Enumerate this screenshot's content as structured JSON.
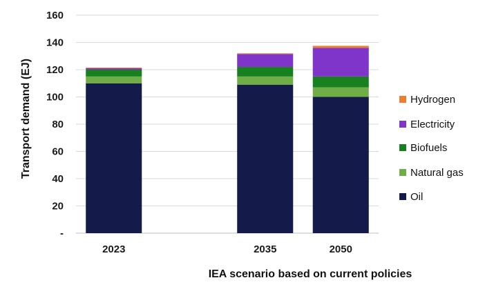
{
  "chart_data": {
    "type": "bar",
    "stacked": true,
    "categories": [
      "2023",
      "",
      "2035",
      "2050"
    ],
    "xlabel": "IEA scenario based on current policies",
    "ylabel": "Transport demand (EJ)",
    "ylim": [
      0,
      160
    ],
    "yticks": [
      "-",
      "20",
      "40",
      "60",
      "80",
      "100",
      "120",
      "140",
      "160"
    ],
    "ytick_values": [
      0,
      20,
      40,
      60,
      80,
      100,
      120,
      140,
      160
    ],
    "grid": true,
    "legend_position": "right",
    "series": [
      {
        "name": "Oil",
        "color": "#141a4a",
        "values": [
          110,
          0,
          109,
          100
        ]
      },
      {
        "name": "Natural gas",
        "color": "#70ad47",
        "values": [
          5,
          0,
          6,
          7
        ]
      },
      {
        "name": "Biofuels",
        "color": "#17801f",
        "values": [
          5,
          0,
          7,
          8
        ]
      },
      {
        "name": "Electricity",
        "color": "#7f35c9",
        "values": [
          1,
          0,
          9.5,
          21
        ]
      },
      {
        "name": "Hydrogen",
        "color": "#ed7d31",
        "values": [
          0.5,
          0,
          0.5,
          1.5
        ]
      }
    ],
    "legend_order": [
      "Hydrogen",
      "Electricity",
      "Biofuels",
      "Natural gas",
      "Oil"
    ]
  }
}
